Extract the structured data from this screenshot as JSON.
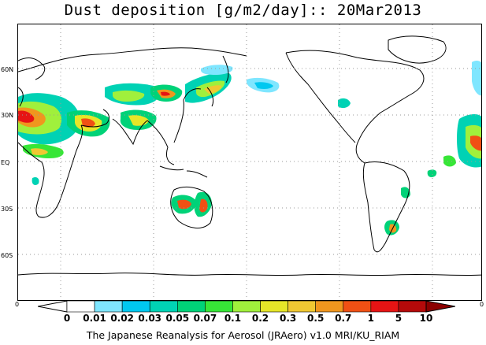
{
  "title": "Dust deposition [g/m2/day]:: 20Mar2013",
  "footer": "The Japanese Reanalysis for Aerosol (JRAero) v1.0 MRI/KU_RIAM",
  "lat_labels": [
    "60N",
    "30N",
    "EQ",
    "30S",
    "60S"
  ],
  "axis_end_left": "0",
  "axis_end_right": "0",
  "colorbar": {
    "labels": [
      "0",
      "0.01",
      "0.02",
      "0.03",
      "0.05",
      "0.07",
      "0.1",
      "0.2",
      "0.3",
      "0.5",
      "0.7",
      "1",
      "5",
      "10"
    ],
    "colors": [
      "#ffffff",
      "#ffffff",
      "#7fe6ff",
      "#00c8f0",
      "#00d2b4",
      "#00d278",
      "#37e637",
      "#a0f03c",
      "#e6e628",
      "#f0c832",
      "#f0961e",
      "#f05014",
      "#e61414",
      "#b40a0a",
      "#8c0000"
    ]
  }
}
